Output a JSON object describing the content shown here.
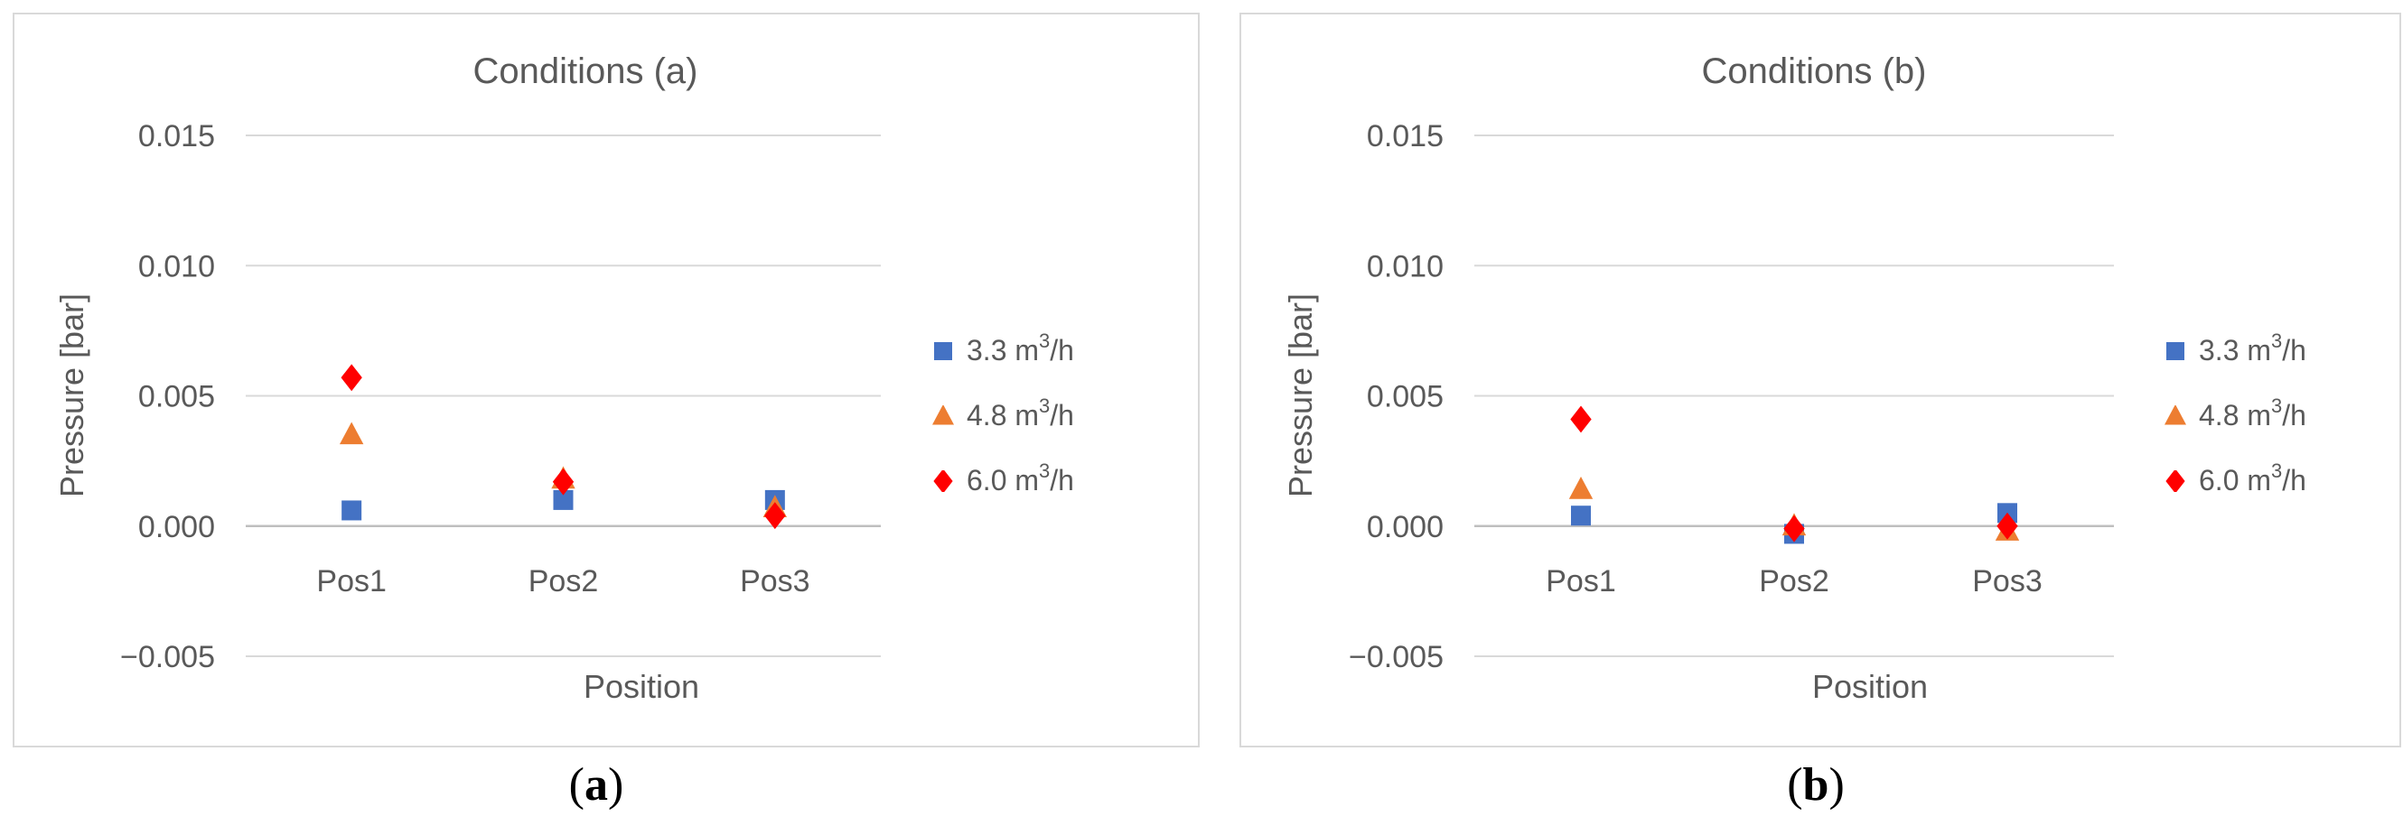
{
  "chart_data": [
    {
      "type": "scatter",
      "panel_label": "a",
      "title": "Conditions (a)",
      "xlabel": "Position",
      "ylabel": "Pressure [bar]",
      "categories": [
        "Pos1",
        "Pos2",
        "Pos3"
      ],
      "yticks": [
        "0.015",
        "0.010",
        "0.005",
        "0.000",
        "−0.005"
      ],
      "ytick_values": [
        0.015,
        0.01,
        0.005,
        0.0,
        -0.005
      ],
      "ylim": [
        -0.005,
        0.015
      ],
      "grid": true,
      "legend_position": "right",
      "series": [
        {
          "name": "3.3 m3/h",
          "name_base": "3.3 m",
          "name_sup": "3",
          "name_tail": "/h",
          "marker": "square",
          "color": "#4472c4",
          "values": [
            0.0006,
            0.001,
            0.001
          ]
        },
        {
          "name": "4.8 m3/h",
          "name_base": "4.8 m",
          "name_sup": "3",
          "name_tail": "/h",
          "marker": "triangle",
          "color": "#ed7d31",
          "values": [
            0.0035,
            0.0018,
            0.0007
          ]
        },
        {
          "name": "6.0 m3/h",
          "name_base": "6.0 m",
          "name_sup": "3",
          "name_tail": "/h",
          "marker": "diamond",
          "color": "#ff0000",
          "values": [
            0.0057,
            0.0017,
            0.0004
          ]
        }
      ]
    },
    {
      "type": "scatter",
      "panel_label": "b",
      "title": "Conditions (b)",
      "xlabel": "Position",
      "ylabel": "Pressure [bar]",
      "categories": [
        "Pos1",
        "Pos2",
        "Pos3"
      ],
      "yticks": [
        "0.015",
        "0.010",
        "0.005",
        "0.000",
        "−0.005"
      ],
      "ytick_values": [
        0.015,
        0.01,
        0.005,
        0.0,
        -0.005
      ],
      "ylim": [
        -0.005,
        0.015
      ],
      "grid": true,
      "legend_position": "right",
      "series": [
        {
          "name": "3.3 m3/h",
          "name_base": "3.3 m",
          "name_sup": "3",
          "name_tail": "/h",
          "marker": "square",
          "color": "#4472c4",
          "values": [
            0.0004,
            -0.0003,
            0.0005
          ]
        },
        {
          "name": "4.8 m3/h",
          "name_base": "4.8 m",
          "name_sup": "3",
          "name_tail": "/h",
          "marker": "triangle",
          "color": "#ed7d31",
          "values": [
            0.0014,
            0.0,
            -0.0002
          ]
        },
        {
          "name": "6.0 m3/h",
          "name_base": "6.0 m",
          "name_sup": "3",
          "name_tail": "/h",
          "marker": "diamond",
          "color": "#ff0000",
          "values": [
            0.0041,
            -0.0001,
            0.0
          ]
        }
      ]
    }
  ],
  "captions": [
    {
      "open": "(",
      "label": "a",
      "close": ")"
    },
    {
      "open": "(",
      "label": "b",
      "close": ")"
    }
  ]
}
